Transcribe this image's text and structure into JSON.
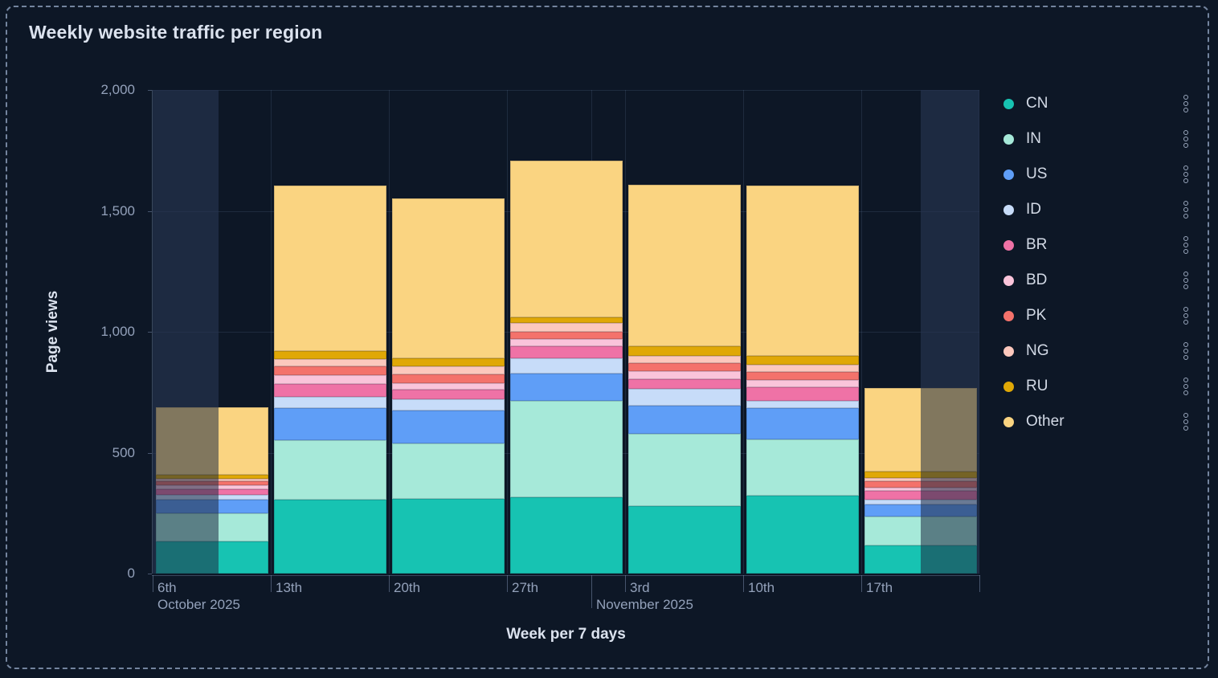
{
  "card": {
    "title": "Weekly website traffic per region"
  },
  "chart_data": {
    "type": "bar",
    "stacked": true,
    "title": "Weekly website traffic per region",
    "xlabel": "Week per 7 days",
    "ylabel": "Page views",
    "ylim": [
      0,
      2000
    ],
    "grid": true,
    "legend_position": "right",
    "ytick_values": [
      0,
      500,
      1000,
      1500,
      2000
    ],
    "ytick_labels": [
      "0",
      "500",
      "1,000",
      "1,500",
      "2,000"
    ],
    "categories": [
      "6th",
      "13th",
      "20th",
      "27th",
      "3rd",
      "10th",
      "17th"
    ],
    "months": [
      {
        "label": "October 2025",
        "at_category_index": 0,
        "fraction": 0
      },
      {
        "label": "November 2025",
        "at_category_index": 3,
        "fraction": 0.714
      }
    ],
    "series": [
      {
        "name": "CN",
        "color": "#17c3b2",
        "values": [
          133,
          305,
          308,
          316,
          279,
          323,
          116
        ]
      },
      {
        "name": "IN",
        "color": "#a6e9d9",
        "values": [
          116,
          245,
          231,
          398,
          299,
          231,
          119
        ]
      },
      {
        "name": "US",
        "color": "#5f9ef7",
        "values": [
          56,
          133,
          136,
          113,
          116,
          129,
          50
        ]
      },
      {
        "name": "ID",
        "color": "#c7dcf9",
        "values": [
          22,
          48,
          45,
          64,
          70,
          31,
          22
        ]
      },
      {
        "name": "BR",
        "color": "#ef72a6",
        "values": [
          22,
          52,
          41,
          48,
          39,
          56,
          36
        ]
      },
      {
        "name": "BD",
        "color": "#fac4da",
        "values": [
          16,
          36,
          25,
          30,
          35,
          30,
          12
        ]
      },
      {
        "name": "PK",
        "color": "#f4726b",
        "values": [
          17,
          39,
          39,
          30,
          31,
          33,
          27
        ]
      },
      {
        "name": "NG",
        "color": "#fcc8bd",
        "values": [
          11,
          30,
          31,
          36,
          31,
          31,
          13
        ]
      },
      {
        "name": "RU",
        "color": "#e0a806",
        "values": [
          17,
          33,
          35,
          26,
          41,
          35,
          26
        ]
      },
      {
        "name": "Other",
        "color": "#fad481",
        "values": [
          277,
          685,
          659,
          646,
          667,
          707,
          346
        ]
      }
    ],
    "totals": [
      687,
      1606,
      1550,
      1707,
      1608,
      1606,
      767
    ],
    "dimmed_partial_ranges": [
      {
        "category_index": 0,
        "from": 0,
        "to": 0.56
      },
      {
        "category_index": 6,
        "from": 0.5,
        "to": 1
      }
    ]
  },
  "legend": {
    "menu_icon": "vertical-dots-menu"
  },
  "colors": {
    "background": "#0d1726",
    "card_border": "#8698b4",
    "band_highlight": "#1e2a42",
    "dim_overlay": "rgba(30,42,66,0.55)",
    "grid_line": "#2c3c5c",
    "axis_line": "#536482",
    "tick_label": "#93a1ba",
    "axis_title": "#dbe2ee",
    "chart_title": "#dbe2ee",
    "legend_label": "#d3dae6",
    "menu_icon": "#9aa7bd"
  }
}
